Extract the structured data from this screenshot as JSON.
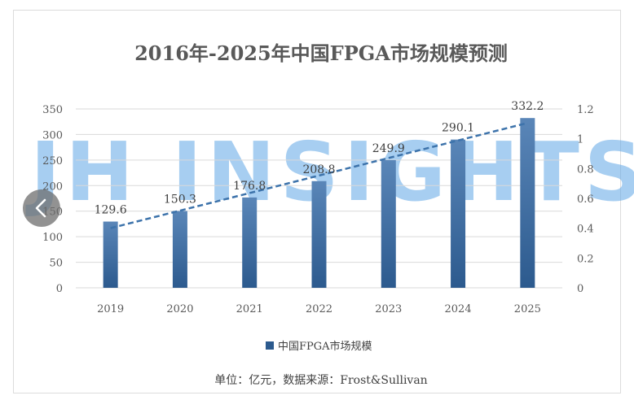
{
  "chart_data": {
    "type": "bar",
    "title": "2016年-2025年中国FPGA市场规模预测",
    "categories": [
      "2019",
      "2020",
      "2021",
      "2022",
      "2023",
      "2024",
      "2025"
    ],
    "series": [
      {
        "name": "中国FPGA市场规模",
        "values": [
          129.6,
          150.3,
          176.8,
          208.8,
          249.9,
          290.1,
          332.2
        ]
      }
    ],
    "value_labels": [
      "129.6",
      "150.3",
      "176.8",
      "208.8",
      "249.9",
      "290.1",
      "332.2"
    ],
    "trendline": "linear, dashed",
    "ylim": [
      0,
      350
    ],
    "yticks": [
      "0",
      "50",
      "100",
      "150",
      "200",
      "250",
      "300",
      "350"
    ],
    "y2lim": [
      0,
      1.2
    ],
    "y2ticks": [
      "0",
      "0.2",
      "0.4",
      "0.6",
      "0.8",
      "1",
      "1.2"
    ],
    "xlabel": "",
    "ylabel": "",
    "grid": true,
    "legend": "bottom",
    "source": "单位：亿元，数据来源：Frost&Sullivan",
    "watermark": "JH INSIGHTS"
  },
  "colors": {
    "bar_top": "#5a86b8",
    "bar_bottom": "#2c5a8e",
    "trendline": "#3d73ab",
    "watermark": "#5ea6e6",
    "grid": "#d9d9d9"
  },
  "nav": {
    "prev_icon": "chevron-left-icon"
  }
}
